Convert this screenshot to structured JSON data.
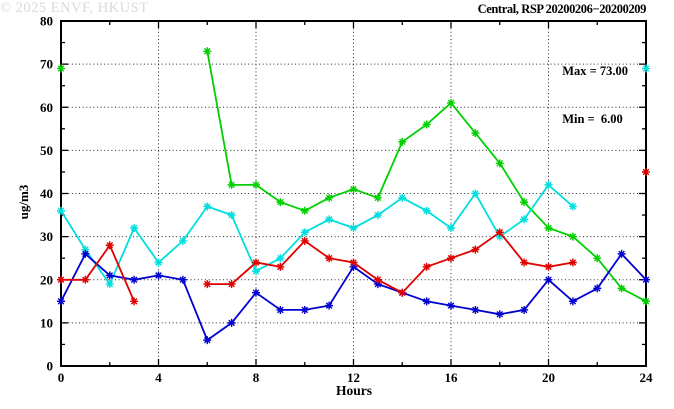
{
  "chart_data": {
    "type": "line",
    "title": "Central, RSP 20200206−20200209",
    "xlabel": "Hours",
    "ylabel": "ug/m3",
    "xlim": [
      0,
      24
    ],
    "ylim": [
      0,
      80
    ],
    "x_major_ticks": [
      0,
      4,
      8,
      12,
      16,
      20,
      24
    ],
    "x_minor_step": 2,
    "y_major_step": 10,
    "y_minor_step": 5,
    "grid": "dotted",
    "legend": "none",
    "x": [
      0,
      1,
      2,
      3,
      4,
      5,
      6,
      7,
      8,
      9,
      10,
      11,
      12,
      13,
      14,
      15,
      16,
      17,
      18,
      19,
      20,
      21,
      22,
      23,
      24
    ],
    "series": [
      {
        "name": "green",
        "color": "#00d000",
        "values": [
          69,
          null,
          null,
          null,
          null,
          null,
          73,
          42,
          42,
          38,
          36,
          39,
          41,
          39,
          52,
          56,
          61,
          54,
          47,
          38,
          32,
          30,
          25,
          18,
          15
        ]
      },
      {
        "name": "cyan",
        "color": "#00dede",
        "values": [
          36,
          27,
          19,
          32,
          24,
          29,
          37,
          35,
          22,
          25,
          31,
          34,
          32,
          35,
          39,
          36,
          32,
          40,
          30,
          34,
          42,
          37,
          null,
          null,
          69
        ]
      },
      {
        "name": "blue",
        "color": "#0000d0",
        "values": [
          15,
          26,
          21,
          20,
          21,
          20,
          6,
          10,
          17,
          13,
          13,
          14,
          23,
          19,
          17,
          15,
          14,
          13,
          12,
          13,
          20,
          15,
          18,
          26,
          20
        ]
      },
      {
        "name": "red",
        "color": "#e00000",
        "values": [
          20,
          20,
          28,
          15,
          null,
          null,
          19,
          19,
          24,
          23,
          29,
          25,
          24,
          20,
          17,
          23,
          25,
          27,
          31,
          24,
          23,
          24,
          null,
          null,
          45
        ]
      }
    ],
    "stats": {
      "max": 73.0,
      "min": 6.0
    }
  },
  "annotation": {
    "max_label": "Max = 73.00",
    "min_label": "Min =  6.00"
  },
  "watermark": "© 2025 ENVF, HKUST"
}
